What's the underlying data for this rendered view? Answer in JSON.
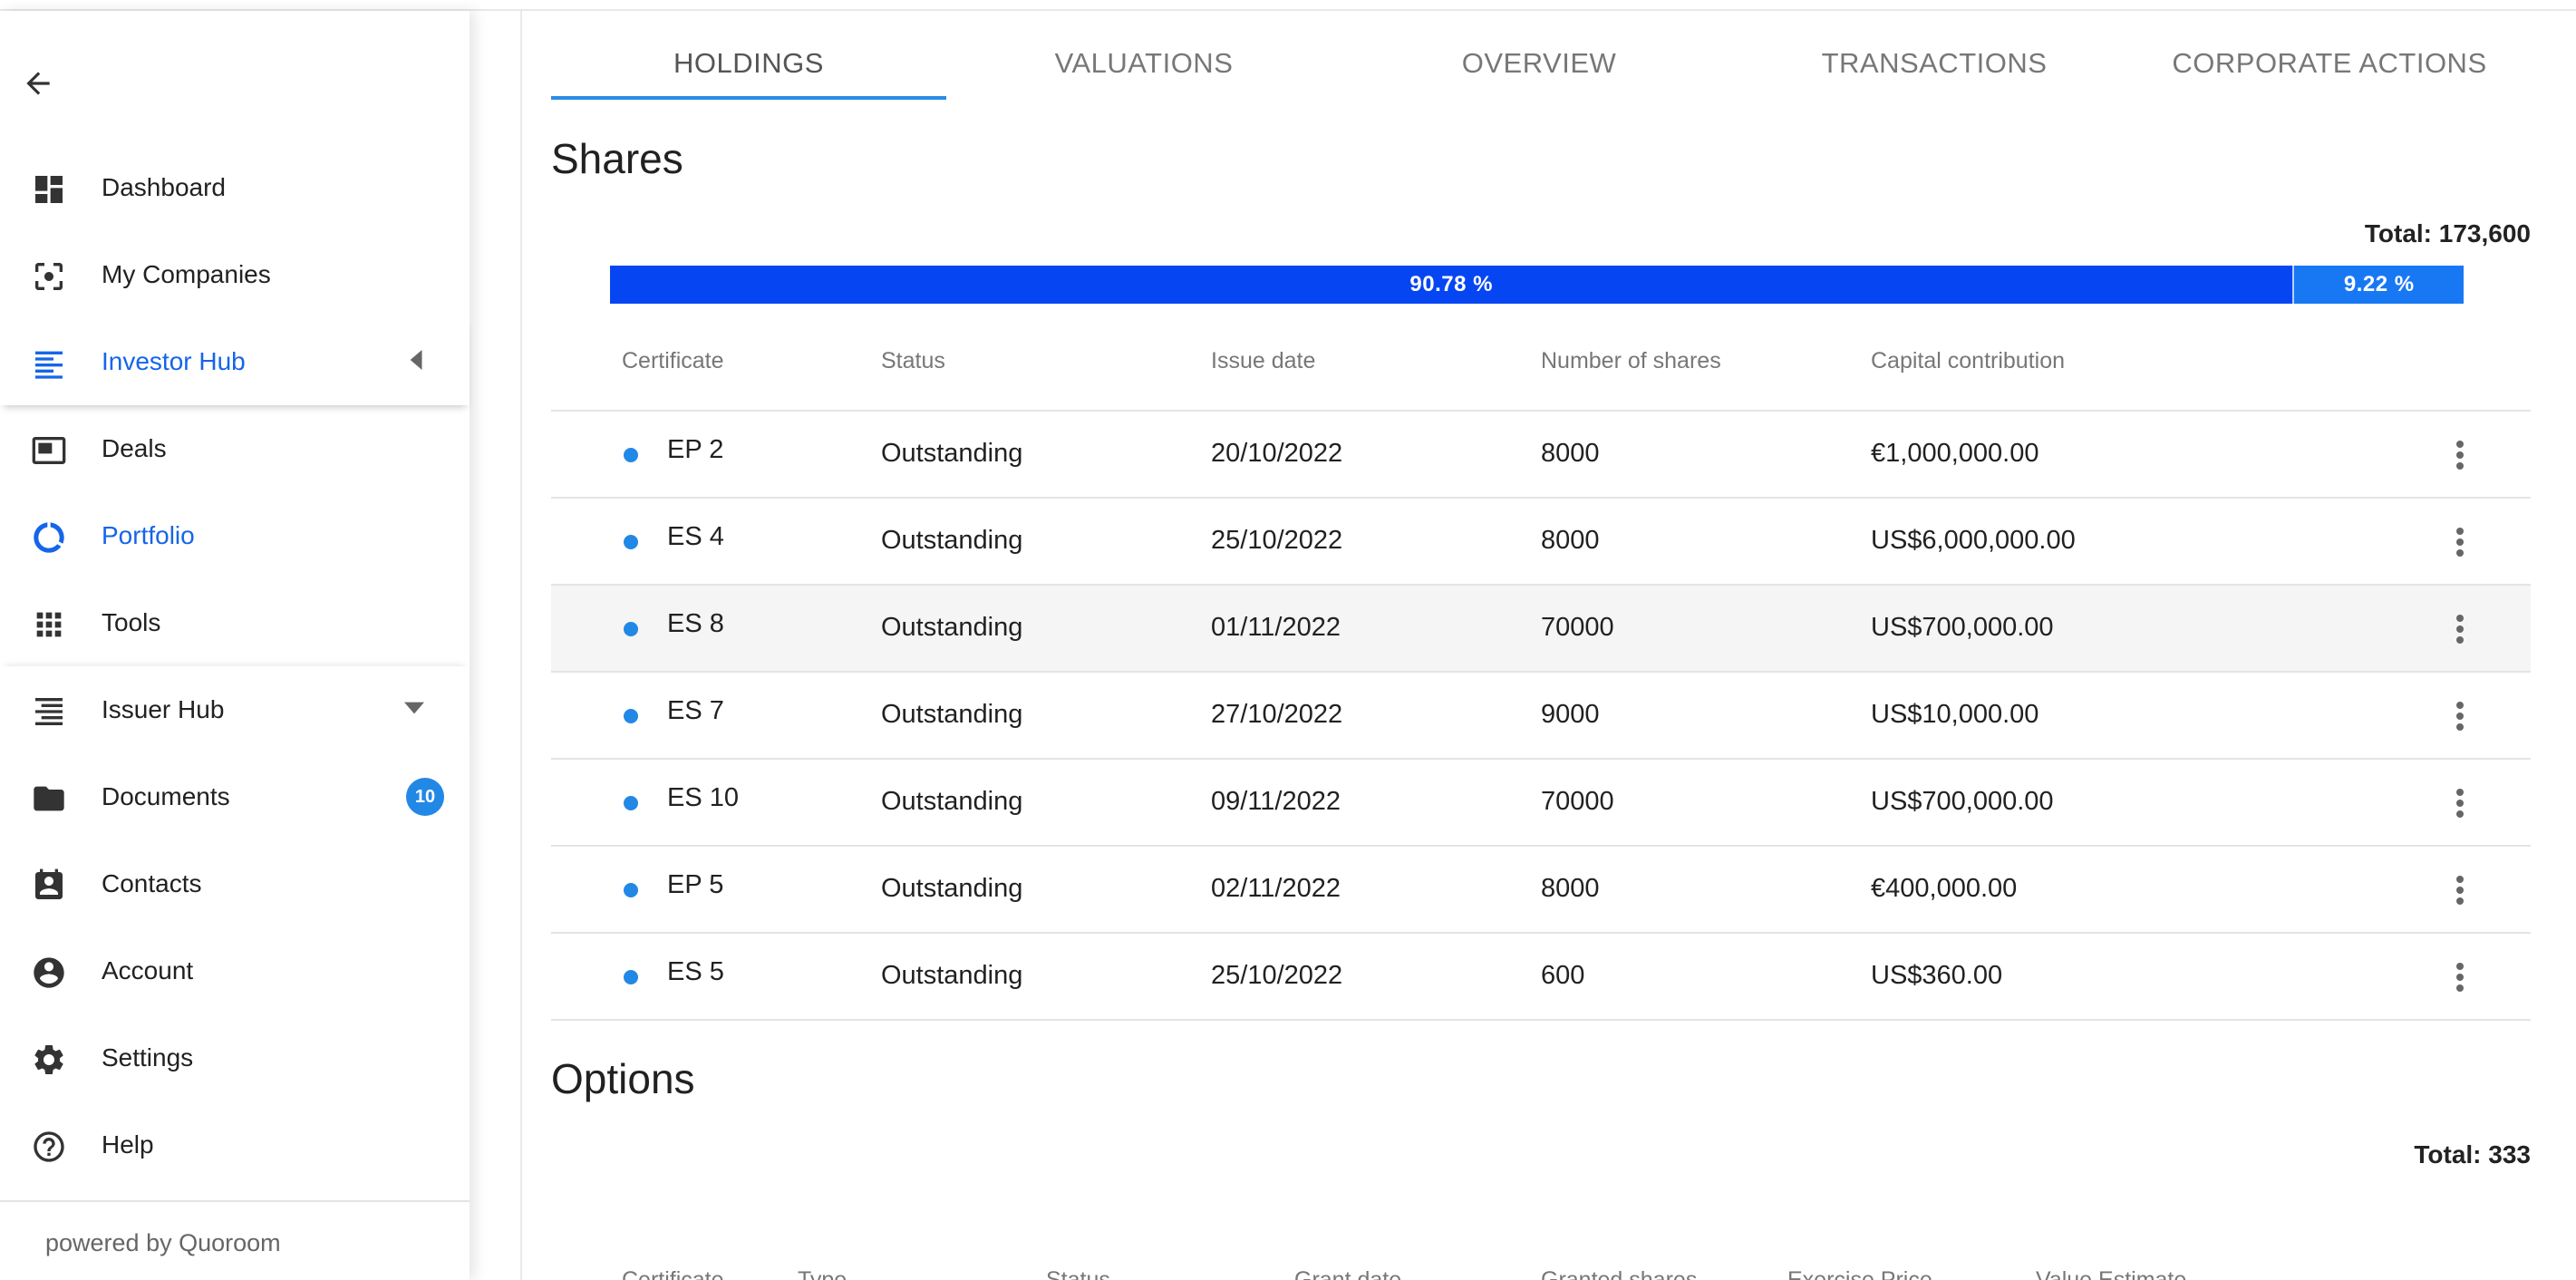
{
  "sidebar": {
    "back_icon": "arrow-left-icon",
    "items": [
      {
        "label": "Dashboard",
        "icon": "dashboard-icon"
      },
      {
        "label": "My Companies",
        "icon": "center-focus-icon"
      },
      {
        "label": "Investor Hub",
        "icon": "list-lines-icon",
        "active": true,
        "caret": "left"
      },
      {
        "label": "Deals",
        "icon": "featured-video-icon"
      },
      {
        "label": "Portfolio",
        "icon": "donut-icon",
        "active": true
      },
      {
        "label": "Tools",
        "icon": "apps-grid-icon"
      },
      {
        "label": "Issuer Hub",
        "icon": "list-lines-icon",
        "caret": "down"
      },
      {
        "label": "Documents",
        "icon": "folder-icon",
        "badge": "10"
      },
      {
        "label": "Contacts",
        "icon": "contact-card-icon"
      },
      {
        "label": "Account",
        "icon": "account-circle-icon"
      },
      {
        "label": "Settings",
        "icon": "gear-icon"
      },
      {
        "label": "Help",
        "icon": "help-circle-icon"
      }
    ],
    "footer": "powered by Quoroom"
  },
  "tabs": [
    "HOLDINGS",
    "VALUATIONS",
    "OVERVIEW",
    "TRANSACTIONS",
    "CORPORATE ACTIONS"
  ],
  "shares": {
    "title": "Shares",
    "total": "Total: 173,600",
    "bar": [
      {
        "label": "90.78 %",
        "fraction": 0.9078,
        "color": "#0646f2"
      },
      {
        "label": "9.22 %",
        "fraction": 0.0922,
        "color": "#1878f4"
      }
    ],
    "columns": [
      "Certificate",
      "Status",
      "Issue date",
      "Number of shares",
      "Capital contribution"
    ],
    "rows": [
      {
        "certificate": "EP 2",
        "status": "Outstanding",
        "issue_date": "20/10/2022",
        "shares": "8000",
        "capital": "€1,000,000.00"
      },
      {
        "certificate": "ES 4",
        "status": "Outstanding",
        "issue_date": "25/10/2022",
        "shares": "8000",
        "capital": "US$6,000,000.00"
      },
      {
        "certificate": "ES 8",
        "status": "Outstanding",
        "issue_date": "01/11/2022",
        "shares": "70000",
        "capital": "US$700,000.00",
        "highlighted": true
      },
      {
        "certificate": "ES 7",
        "status": "Outstanding",
        "issue_date": "27/10/2022",
        "shares": "9000",
        "capital": "US$10,000.00"
      },
      {
        "certificate": "ES 10",
        "status": "Outstanding",
        "issue_date": "09/11/2022",
        "shares": "70000",
        "capital": "US$700,000.00"
      },
      {
        "certificate": "EP 5",
        "status": "Outstanding",
        "issue_date": "02/11/2022",
        "shares": "8000",
        "capital": "€400,000.00"
      },
      {
        "certificate": "ES 5",
        "status": "Outstanding",
        "issue_date": "25/10/2022",
        "shares": "600",
        "capital": "US$360.00"
      }
    ]
  },
  "options": {
    "title": "Options",
    "total": "Total: 333",
    "columns": [
      "Certificate",
      "Type",
      "Status",
      "Grant date",
      "Granted shares",
      "Exercise Price",
      "Value Estimate"
    ]
  },
  "colors": {
    "accent": "#1565e8",
    "dot": "#2288e6"
  }
}
